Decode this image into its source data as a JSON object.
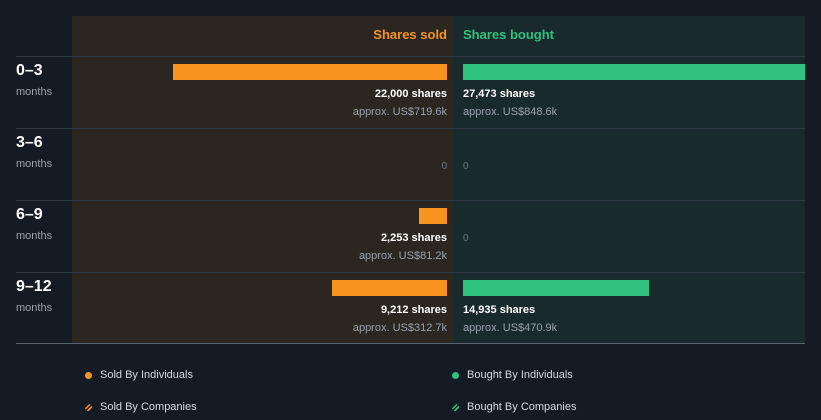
{
  "columns": {
    "sold_label": "Shares sold",
    "bought_label": "Shares bought"
  },
  "colors": {
    "sold": "#f7931e",
    "bought": "#2ec27e"
  },
  "rows": [
    {
      "period": "0–3",
      "unit": "months",
      "sold_shares": "22,000 shares",
      "sold_approx": "approx. US$719.6k",
      "bought_shares": "27,473 shares",
      "bought_approx": "approx. US$848.6k"
    },
    {
      "period": "3–6",
      "unit": "months",
      "sold_zero": "0",
      "bought_zero": "0"
    },
    {
      "period": "6–9",
      "unit": "months",
      "sold_shares": "2,253 shares",
      "sold_approx": "approx. US$81.2k",
      "bought_zero": "0"
    },
    {
      "period": "9–12",
      "unit": "months",
      "sold_shares": "9,212 shares",
      "sold_approx": "approx. US$312.7k",
      "bought_shares": "14,935 shares",
      "bought_approx": "approx. US$470.9k"
    }
  ],
  "legend": {
    "sold_individuals": "Sold By Individuals",
    "bought_individuals": "Bought By Individuals",
    "sold_companies": "Sold By Companies",
    "bought_companies": "Bought By Companies"
  },
  "chart_data": {
    "type": "bar",
    "categories": [
      "0–3",
      "3–6",
      "6–9",
      "9–12"
    ],
    "series": [
      {
        "name": "Shares sold",
        "values": [
          22000,
          0,
          2253,
          9212
        ]
      },
      {
        "name": "Shares bought",
        "values": [
          27473,
          0,
          0,
          14935
        ]
      }
    ],
    "sold_value_usd_k": [
      719.6,
      0,
      81.2,
      312.7
    ],
    "bought_value_usd_k": [
      848.6,
      0,
      0,
      470.9
    ],
    "xlabel": "",
    "ylabel": "",
    "legend_position": "bottom"
  }
}
